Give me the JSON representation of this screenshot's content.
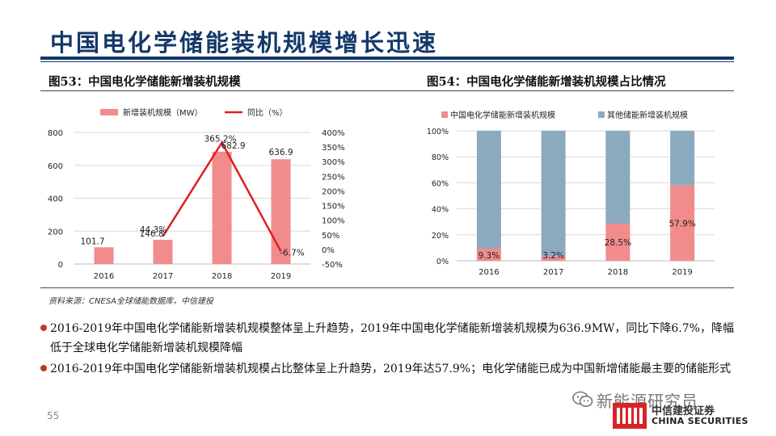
{
  "slide": {
    "title": "中国电化学储能装机规模增长迅速",
    "page_number": "55"
  },
  "figures": {
    "left_caption": "图53：中国电化学储能新增装机规模",
    "right_caption": "图54：中国电化学储能新增装机规模占比情况"
  },
  "chart_data": [
    {
      "type": "bar",
      "categories": [
        "2016",
        "2017",
        "2018",
        "2019"
      ],
      "series": [
        {
          "name": "新增装机规模（MW）",
          "type": "bar",
          "axis": "left",
          "color": "#f28b8b",
          "values": [
            101.7,
            146.8,
            682.9,
            636.9
          ],
          "labels": [
            "101.7",
            "146.8",
            "682.9",
            "636.9"
          ]
        },
        {
          "name": "同比（%）",
          "type": "line",
          "axis": "right",
          "color": "#e02020",
          "values": [
            null,
            44.3,
            365.2,
            -6.7
          ],
          "labels": [
            "",
            "44.3%",
            "365.2%",
            "-6.7%"
          ]
        }
      ],
      "y_left": {
        "min": 0,
        "max": 800,
        "ticks": [
          "0",
          "200",
          "400",
          "600",
          "800"
        ]
      },
      "y_right": {
        "min": -50,
        "max": 400,
        "ticks": [
          "-50%",
          "0%",
          "50%",
          "100%",
          "150%",
          "200%",
          "250%",
          "300%",
          "350%",
          "400%"
        ]
      },
      "grid": true,
      "legend": "top"
    },
    {
      "type": "bar",
      "stacked": true,
      "categories": [
        "2016",
        "2017",
        "2018",
        "2019"
      ],
      "series": [
        {
          "name": "中国电化学储能新增装机规模",
          "color": "#f28b8b",
          "values": [
            9.3,
            3.2,
            28.5,
            57.9
          ],
          "labels": [
            "9.3%",
            "3.2%",
            "28.5%",
            "57.9%"
          ]
        },
        {
          "name": "其他储能新增装机规模",
          "color": "#8caabf",
          "values": [
            90.7,
            96.8,
            71.5,
            42.1
          ]
        }
      ],
      "y": {
        "min": 0,
        "max": 100,
        "ticks": [
          "0%",
          "20%",
          "40%",
          "60%",
          "80%",
          "100%"
        ]
      },
      "grid": true,
      "legend": "top"
    }
  ],
  "source": "资料来源：CNESA全球储能数据库，中信建投",
  "bullets": [
    "2016-2019年中国电化学储能新增装机规模整体呈上升趋势，2019年中国电化学储能新增装机规模为636.9MW，同比下降6.7%，降幅低于全球电化学储能新增装机规模降幅",
    "2016-2019年中国电化学储能新增装机规模占比整体呈上升趋势，2019年达57.9%；电化学储能已成为中国新增储能最主要的储能形式"
  ],
  "watermark": "新能源研究员",
  "logo": {
    "cn": "中信建投证券",
    "en": "CHINA SECURITIES"
  },
  "icons": {
    "wechat": "wechat-icon",
    "logo": "china-securities-logo"
  },
  "colors": {
    "title": "#14386a",
    "bar": "#f28b8b",
    "line": "#e02020",
    "other": "#8caabf",
    "bullet": "#c0392b"
  }
}
